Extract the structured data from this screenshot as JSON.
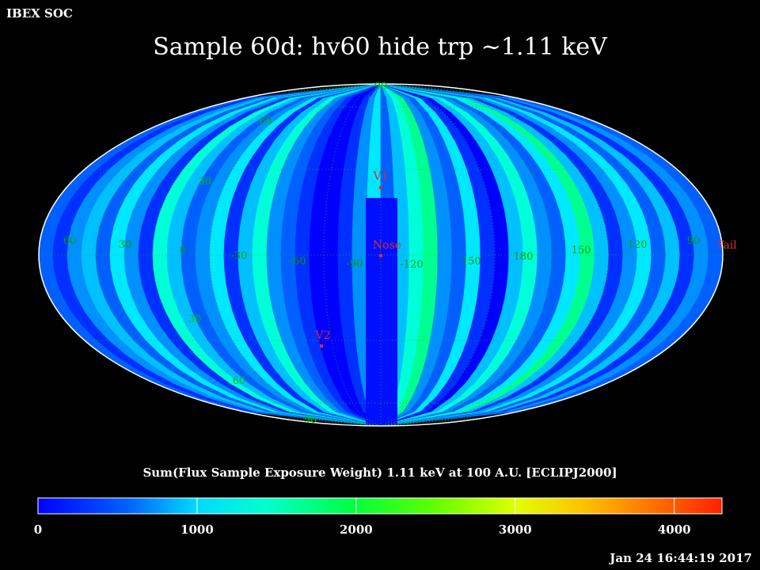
{
  "header": {
    "agency": "IBEX SOC",
    "title": "Sample 60d: hv60 hide trp ~1.11 keV",
    "timestamp": "Jan 24 16:44:19 2017"
  },
  "map": {
    "projection": "mollweide",
    "frame": "ECLIPJ2000",
    "latitude_labels": [
      "90",
      "60",
      "30",
      "30",
      "60",
      "90"
    ],
    "longitude_labels": [
      "60",
      "30",
      "0",
      "-30",
      "-60",
      "-90",
      "-120",
      "-150",
      "180",
      "150",
      "120",
      "90"
    ],
    "markers": [
      {
        "label": "V1",
        "color": "#d03030"
      },
      {
        "label": "Nose",
        "color": "#d03030"
      },
      {
        "label": "V2",
        "color": "#d03030"
      },
      {
        "label": "Tail",
        "color": "#d03030"
      }
    ],
    "grid_color": "#00c000",
    "outline_color": "#ffffff"
  },
  "colorbar": {
    "title": "Sum(Flux Sample Exposure Weight)  1.11 keV at 100 A.U. [ECLIPJ2000]",
    "min": 0,
    "max": 4300,
    "tick_labels": [
      "0",
      "1000",
      "2000",
      "3000",
      "4000"
    ],
    "tick_values": [
      0,
      1000,
      2000,
      3000,
      4000
    ],
    "colormap": [
      "#0000ff",
      "#00a0ff",
      "#00ffff",
      "#00ff80",
      "#00ff00",
      "#80ff00",
      "#ffff00",
      "#ff8000",
      "#ff2000"
    ]
  }
}
